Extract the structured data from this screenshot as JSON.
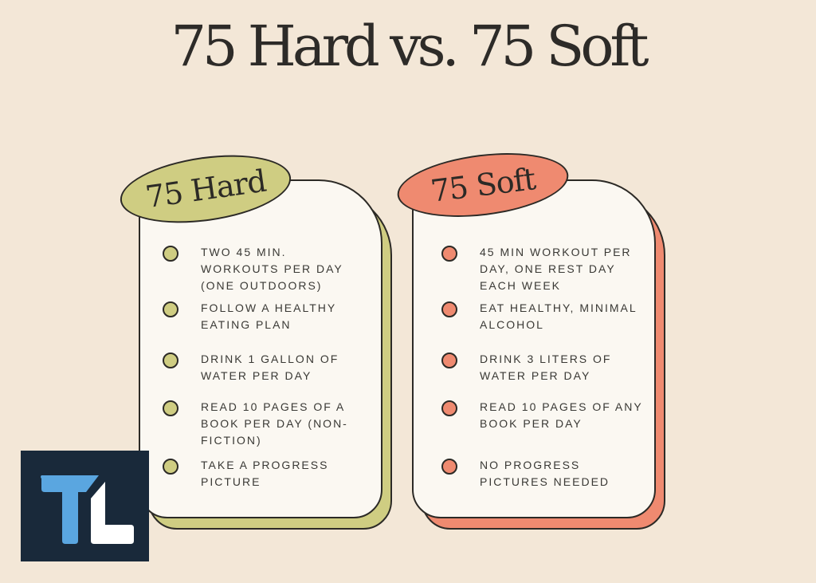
{
  "title": "75 Hard vs. 75 Soft",
  "colors": {
    "background": "#f3e7d7",
    "hard_accent": "#cfcd82",
    "soft_accent": "#ef8a70",
    "card": "#fbf8f2",
    "logo_bg": "#19293a",
    "logo_t": "#5aa6e0",
    "logo_l": "#ffffff"
  },
  "hard": {
    "label": "75 Hard",
    "items": [
      "Two 45 min. workouts per day (one outdoors)",
      "Follow a healthy eating plan",
      "Drink 1 gallon of water per day",
      "Read 10 pages of a book per day (non-fiction)",
      "Take a progress picture"
    ]
  },
  "soft": {
    "label": "75 Soft",
    "items": [
      "45 min workout per day, one rest day each week",
      "Eat healthy, minimal alcohol",
      "Drink 3 liters of water per day",
      "Read 10 pages of any book per day",
      "No progress pictures needed"
    ]
  },
  "logo": {
    "text": "TL"
  }
}
